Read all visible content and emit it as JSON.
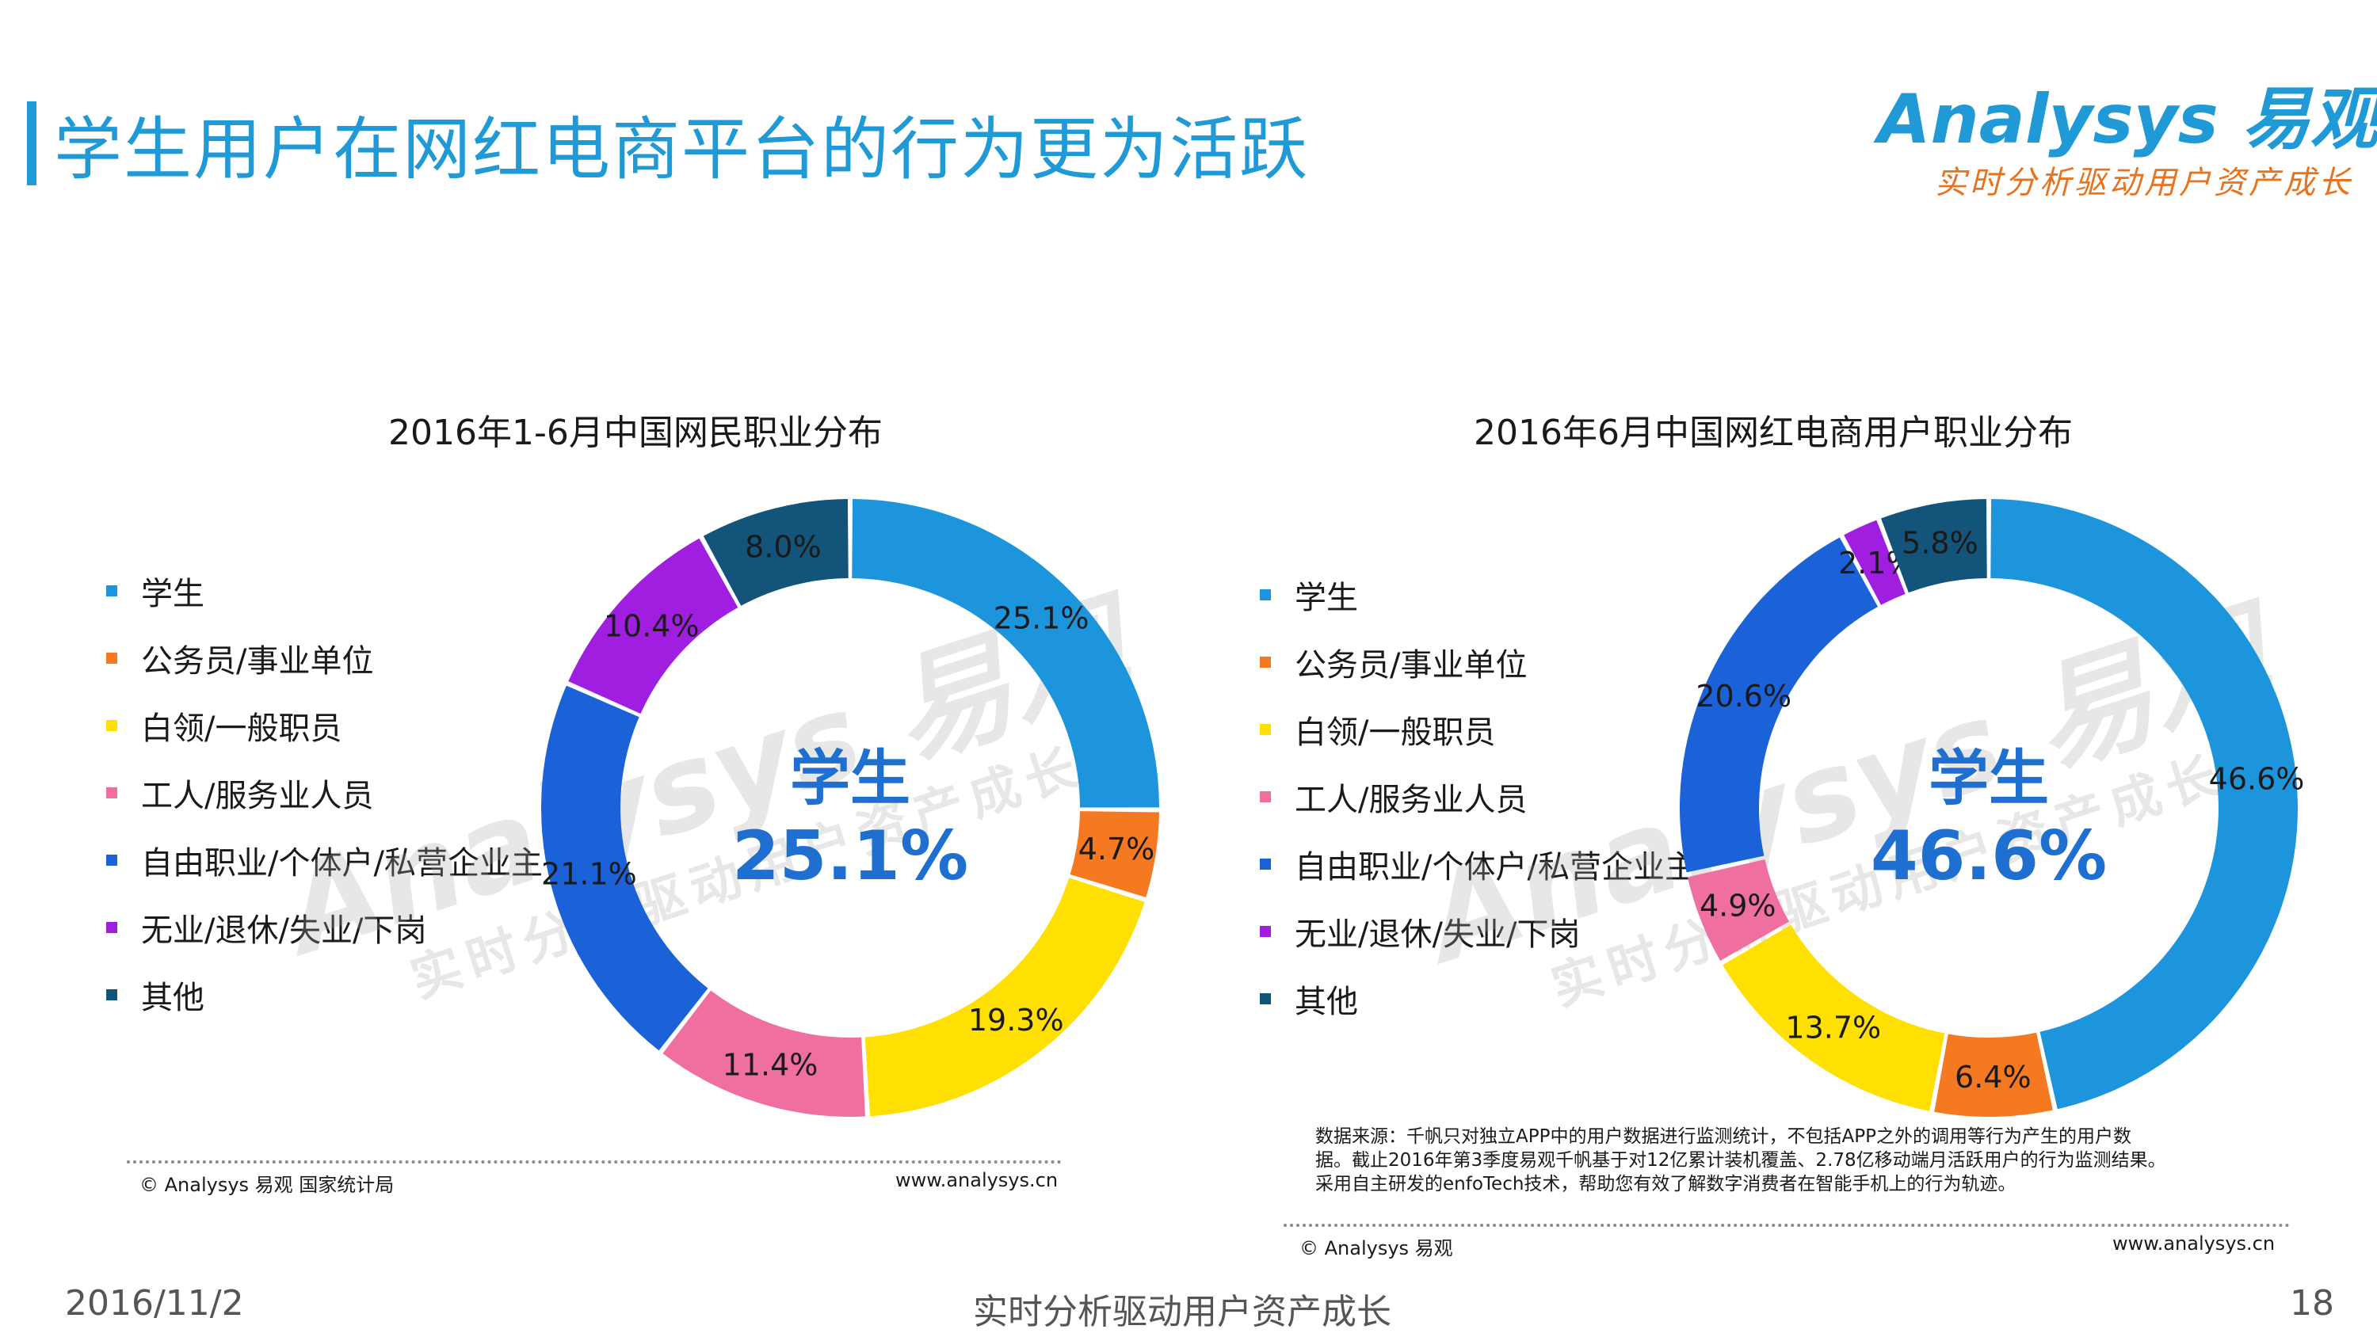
{
  "header": {
    "title": "学生用户在网红电商平台的行为更为活跃",
    "logo_main": "Analysys 易观",
    "logo_sub": "实时分析驱动用户资产成长"
  },
  "watermark": {
    "main": "Analysys 易观",
    "sub": "实时分析驱动用户资产成长"
  },
  "colors": {
    "accent": "#1f9ad6",
    "center_text": "#1f6fd0",
    "categories": [
      "#1c95dd",
      "#f47920",
      "#ffe000",
      "#ee6fa0",
      "#1b62d8",
      "#a01ee0",
      "#13547a"
    ]
  },
  "legend_left": [
    "学生",
    "公务员/事业单位",
    "白领/一般职员",
    "工人/服务业人员",
    "自由职业/个体户/私营企业主",
    "无业/退休/失业/下岗",
    "其他"
  ],
  "legend_right": [
    "学生",
    "公务员/事业单位",
    "白领/一般职员",
    "工人/服务业人员",
    "自由职业/个体户/私营企业主",
    "无业/退休/失业/下岗",
    "其他"
  ],
  "chart_data": [
    {
      "type": "pie",
      "title": "2016年1-6月中国网民职业分布",
      "categories": [
        "学生",
        "公务员/事业单位",
        "白领/一般职员",
        "工人/服务业人员",
        "自由职业/个体户/私营企业主",
        "无业/退休/失业/下岗",
        "其他"
      ],
      "values": [
        25.1,
        4.7,
        19.3,
        11.4,
        21.1,
        10.4,
        8.0
      ],
      "labels": [
        "25.1%",
        "4.7%",
        "19.3%",
        "11.4%",
        "21.1%",
        "10.4%",
        "8.0%"
      ],
      "center_category": "学生",
      "center_value": "25.1%",
      "legend": "left"
    },
    {
      "type": "pie",
      "title": "2016年6月中国网红电商用户职业分布",
      "categories": [
        "学生",
        "公务员/事业单位",
        "白领/一般职员",
        "工人/服务业人员",
        "自由职业/个体户/私营企业主",
        "无业/退休/失业/下岗",
        "其他"
      ],
      "values": [
        46.6,
        6.4,
        13.7,
        4.9,
        20.6,
        2.1,
        5.8
      ],
      "labels": [
        "46.6%",
        "6.4%",
        "13.7%",
        "4.9%",
        "20.6%",
        "2.1%",
        "5.8%"
      ],
      "center_category": "学生",
      "center_value": "46.6%",
      "legend": "left"
    }
  ],
  "source_left": {
    "left": "© Analysys 易观 国家统计局",
    "right": "www.analysys.cn"
  },
  "source_right": {
    "left": "© Analysys 易观",
    "right": "www.analysys.cn"
  },
  "note_lines": [
    "数据来源：千帆只对独立APP中的用户数据进行监测统计，不包括APP之外的调用等行为产生的用户数",
    "据。截止2016年第3季度易观千帆基于对12亿累计装机覆盖、2.78亿移动端月活跃用户的行为监测结果。",
    "采用自主研发的enfoTech技术，帮助您有效了解数字消费者在智能手机上的行为轨迹。"
  ],
  "footer": {
    "date": "2016/11/2",
    "slogan": "实时分析驱动用户资产成长",
    "page": "18"
  }
}
